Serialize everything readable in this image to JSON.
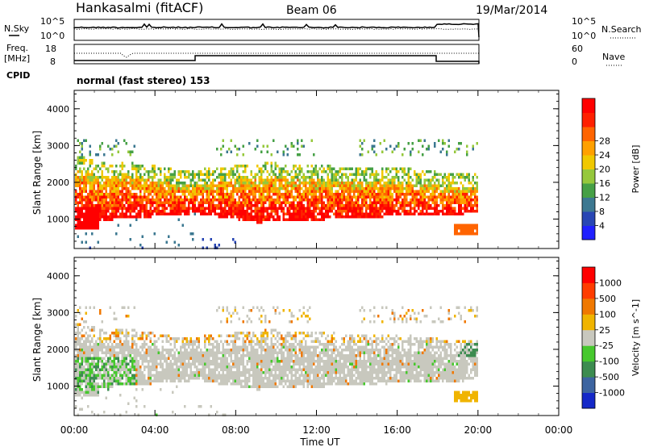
{
  "header": {
    "station": "Hankasalmi (fitACF)",
    "beam": "Beam 06",
    "date": "19/Mar/2014",
    "mode": "normal (fast stereo) 153"
  },
  "strip_panels": {
    "noise": {
      "left_label": "N.Sky",
      "right_label": "N.Search",
      "left_ticks": [
        "10^5",
        "10^0"
      ],
      "right_ticks": [
        "10^5",
        "10^0"
      ]
    },
    "freq": {
      "left_label_line1": "Freq.",
      "left_label_line2": "[MHz]",
      "right_label": "Nave",
      "left_ticks": [
        "18",
        "8"
      ],
      "right_ticks": [
        "60",
        "0"
      ]
    },
    "cpid_label": "CPID"
  },
  "chart_data": [
    {
      "type": "heatmap",
      "panel": "power",
      "ylabel": "Slant Range [km]",
      "ylim": [
        200,
        4500
      ],
      "yticks": [
        "1000",
        "2000",
        "3000",
        "4000"
      ],
      "xlabel": "Time UT",
      "xlim_hours": [
        0,
        24
      ],
      "xticks": [
        "00:00",
        "04:00",
        "08:00",
        "12:00",
        "16:00",
        "20:00",
        "00:00"
      ],
      "colorbar": {
        "label": "Power [dB]",
        "ticks": [
          "4",
          "8",
          "12",
          "16",
          "20",
          "24",
          "28"
        ],
        "colors": [
          "#2020ff",
          "#2846b4",
          "#3c7891",
          "#46a046",
          "#96c83c",
          "#f0c800",
          "#ffa000",
          "#ff6400",
          "#ff2000",
          "#ff0000"
        ]
      },
      "data_extent_hours": [
        0,
        20
      ]
    },
    {
      "type": "heatmap",
      "panel": "velocity",
      "ylabel": "Slant Range [km]",
      "ylim": [
        200,
        4500
      ],
      "yticks": [
        "1000",
        "2000",
        "3000",
        "4000"
      ],
      "xlabel": "Time UT",
      "xlim_hours": [
        0,
        24
      ],
      "xticks": [
        "00:00",
        "04:00",
        "08:00",
        "12:00",
        "16:00",
        "20:00",
        "00:00"
      ],
      "colorbar": {
        "label": "Velocity [m s^-1]",
        "ticks": [
          "1000",
          "500",
          "100",
          "25",
          "-25",
          "-100",
          "-500",
          "-1000"
        ],
        "colors": [
          "#1428c8",
          "#3c64a0",
          "#3c8c50",
          "#46c82d",
          "#c8c8be",
          "#f0b400",
          "#f07800",
          "#ff3c00",
          "#ff0000"
        ]
      },
      "data_extent_hours": [
        0,
        20
      ]
    }
  ],
  "axis": {
    "xlabel": "Time UT"
  }
}
